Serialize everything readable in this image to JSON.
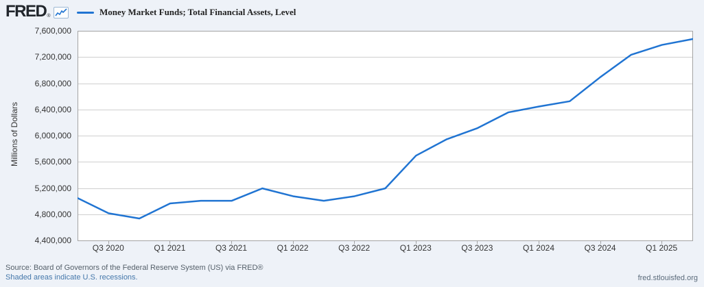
{
  "header": {
    "logo_text": "FRED",
    "logo_registered": "®"
  },
  "chart_data": {
    "type": "line",
    "title": "Money Market Funds; Total Financial Assets, Level",
    "ylabel": "Millions of Dollars",
    "x": [
      "Q2 2020",
      "Q3 2020",
      "Q4 2020",
      "Q1 2021",
      "Q2 2021",
      "Q3 2021",
      "Q4 2021",
      "Q1 2022",
      "Q2 2022",
      "Q3 2022",
      "Q4 2022",
      "Q1 2023",
      "Q2 2023",
      "Q3 2023",
      "Q4 2023",
      "Q1 2024",
      "Q2 2024",
      "Q3 2024",
      "Q4 2024",
      "Q1 2025",
      "Q2 2025"
    ],
    "values": [
      5050000,
      4820000,
      4740000,
      4970000,
      5010000,
      5010000,
      5200000,
      5080000,
      5010000,
      5080000,
      5200000,
      5700000,
      5950000,
      6120000,
      6360000,
      6450000,
      6530000,
      6900000,
      7240000,
      7390000,
      7480000
    ],
    "ylim": [
      4400000,
      7600000
    ],
    "ytick_step": 400000,
    "ytick_labels": [
      "7,600,000",
      "7,200,000",
      "6,800,000",
      "6,400,000",
      "6,000,000",
      "5,600,000",
      "5,200,000",
      "4,800,000",
      "4,400,000"
    ],
    "xtick_labels": [
      "Q3 2020",
      "Q1 2021",
      "Q3 2021",
      "Q1 2022",
      "Q3 2022",
      "Q1 2023",
      "Q3 2023",
      "Q1 2024",
      "Q3 2024",
      "Q1 2025"
    ],
    "grid": "horizontal",
    "legend_position": "top-left",
    "line_color": "#2074d2"
  },
  "footer": {
    "source": "Source: Board of Governors of the Federal Reserve System (US) via FRED®",
    "recessions_note": "Shaded areas indicate U.S. recessions.",
    "site": "fred.stlouisfed.org"
  },
  "colors": {
    "page_bg": "#eef2f8",
    "plot_bg": "#ffffff",
    "gridline": "#cfcfcf",
    "plot_border": "#a3a3a3",
    "line": "#2074d2",
    "axis_text": "#333333",
    "source_text": "#55606a",
    "link_text": "#4477aa",
    "site_text": "#5b6b7b"
  }
}
